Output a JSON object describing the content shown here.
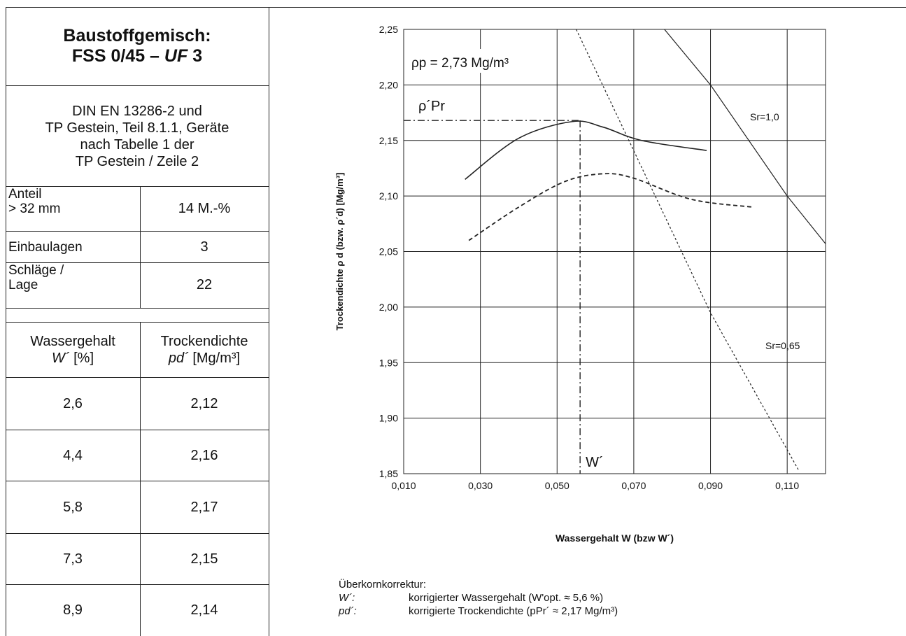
{
  "table": {
    "title_line1": "Baustoffgemisch:",
    "title_line2_prefix": "FSS 0/45 – ",
    "title_line2_italic": "UF",
    "title_line2_suffix": " 3",
    "standard_lines": [
      "DIN EN 13286-2 und",
      "TP Gestein, Teil 8.1.1, Geräte",
      "nach Tabelle 1 der",
      "TP Gestein / Zeile 2"
    ],
    "params": [
      {
        "label_l1": "Anteil",
        "label_l2": "> 32 mm",
        "value": "14 M.-%"
      },
      {
        "label_l1": "Einbaulagen",
        "label_l2": "",
        "value": "3"
      },
      {
        "label_l1": "Schläge /",
        "label_l2": "Lage",
        "value": "22"
      }
    ],
    "col1_header_l1": "Wassergehalt",
    "col1_header_sym": "W´",
    "col1_header_unit": " [%]",
    "col2_header_l1": "Trockendichte",
    "col2_header_sym": "pd´",
    "col2_header_unit": " [Mg/m³]",
    "rows": [
      [
        "2,6",
        "2,12"
      ],
      [
        "4,4",
        "2,16"
      ],
      [
        "5,8",
        "2,17"
      ],
      [
        "7,3",
        "2,15"
      ],
      [
        "8,9",
        "2,14"
      ]
    ]
  },
  "chart_data": {
    "type": "line",
    "xlabel": "Wassergehalt W (bzw W´)",
    "ylabel": "Trockendichte ρ d (bzw. ρ´d) [Mg/m³]",
    "xlim": [
      0.01,
      0.12
    ],
    "ylim": [
      1.85,
      2.25
    ],
    "xticks": [
      0.01,
      0.03,
      0.05,
      0.07,
      0.09,
      0.11
    ],
    "xtick_labels": [
      "0,010",
      "0,030",
      "0,050",
      "0,070",
      "0,090",
      "0,110"
    ],
    "yticks": [
      1.85,
      1.9,
      1.95,
      2.0,
      2.05,
      2.1,
      2.15,
      2.2,
      2.25
    ],
    "ytick_labels": [
      "1,85",
      "1,90",
      "1,95",
      "2,00",
      "2,05",
      "2,10",
      "2,15",
      "2,20",
      "2,25"
    ],
    "grid": true,
    "particle_density_label": "ρp = 2,73 Mg/m³",
    "rho_pr_label": "ρ´Pr",
    "w_opt_label": "W´",
    "w_opt": 0.056,
    "rho_pr": 2.168,
    "series": [
      {
        "style": "solid",
        "x": [
          0.026,
          0.04,
          0.054,
          0.062,
          0.072,
          0.089
        ],
        "y": [
          2.115,
          2.152,
          2.167,
          2.162,
          2.15,
          2.141
        ]
      },
      {
        "style": "dashed",
        "x": [
          0.027,
          0.04,
          0.052,
          0.062,
          0.07,
          0.085,
          0.101
        ],
        "y": [
          2.06,
          2.09,
          2.113,
          2.12,
          2.116,
          2.097,
          2.09
        ]
      },
      {
        "name": "Sr=1,0",
        "style": "saturation",
        "x": [
          0.078,
          0.09,
          0.11,
          0.12
        ],
        "y": [
          2.25,
          2.2,
          2.1,
          2.057
        ]
      },
      {
        "name": "Sr=0,65",
        "style": "dotted",
        "x": [
          0.055,
          0.09,
          0.113
        ],
        "y": [
          2.25,
          1.995,
          1.853
        ]
      }
    ]
  },
  "notes": {
    "heading": "Überkornkorrektur:",
    "items": [
      {
        "key": "W´:",
        "text": "korrigierter Wassergehalt (W'opt. ≈ 5,6 %)"
      },
      {
        "key": "pd´:",
        "text": "korrigierte Trockendichte (pPr´ ≈ 2,17 Mg/m³)"
      }
    ]
  }
}
